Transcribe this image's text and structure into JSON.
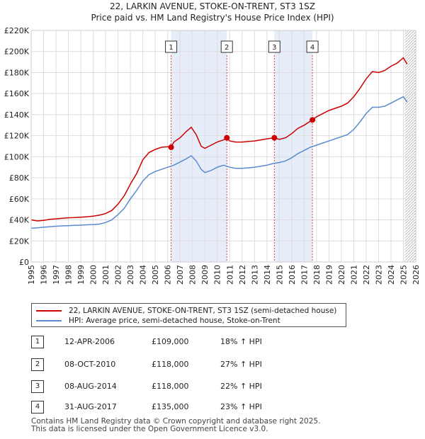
{
  "chart_data": {
    "type": "line",
    "title": "22, LARKIN AVENUE, STOKE-ON-TRENT, ST3 1SZ",
    "subtitle": "Price paid vs. HM Land Registry's House Price Index (HPI)",
    "xlabel": "",
    "ylabel": "",
    "xlim": [
      1995,
      2026
    ],
    "ylim": [
      0,
      220000
    ],
    "y_ticks": [
      0,
      20000,
      40000,
      60000,
      80000,
      100000,
      120000,
      140000,
      160000,
      180000,
      200000,
      220000
    ],
    "y_tick_labels": [
      "£0",
      "£20K",
      "£40K",
      "£60K",
      "£80K",
      "£100K",
      "£120K",
      "£140K",
      "£160K",
      "£180K",
      "£200K",
      "£220K"
    ],
    "x_ticks": [
      1995,
      1996,
      1997,
      1998,
      1999,
      2000,
      2001,
      2002,
      2003,
      2004,
      2005,
      2006,
      2007,
      2008,
      2009,
      2010,
      2011,
      2012,
      2013,
      2014,
      2015,
      2016,
      2017,
      2018,
      2019,
      2020,
      2021,
      2022,
      2023,
      2024,
      2025,
      2026
    ],
    "x_tick_labels": [
      "1995",
      "1996",
      "1997",
      "1998",
      "1999",
      "2000",
      "2001",
      "2002",
      "2003",
      "2004",
      "2005",
      "2006",
      "2007",
      "2008",
      "2009",
      "2010",
      "2011",
      "2012",
      "2013",
      "2014",
      "2015",
      "2016",
      "2017",
      "2018",
      "2019",
      "2020",
      "2021",
      "2022",
      "2023",
      "2024",
      "2025",
      "2026"
    ],
    "grid": true,
    "series": [
      {
        "name": "22, LARKIN AVENUE, STOKE-ON-TRENT, ST3 1SZ (semi-detached house)",
        "color": "#cc0000",
        "x": [
          1995.0,
          1995.5,
          1996.0,
          1996.5,
          1997.0,
          1997.5,
          1998.0,
          1998.5,
          1999.0,
          1999.5,
          2000.0,
          2000.5,
          2001.0,
          2001.5,
          2002.0,
          2002.5,
          2003.0,
          2003.5,
          2004.0,
          2004.5,
          2005.0,
          2005.5,
          2006.0,
          2006.28,
          2006.5,
          2007.0,
          2007.5,
          2007.9,
          2008.3,
          2008.7,
          2009.0,
          2009.5,
          2010.0,
          2010.5,
          2010.77,
          2011.0,
          2011.5,
          2012.0,
          2012.5,
          2013.0,
          2013.5,
          2014.0,
          2014.6,
          2015.0,
          2015.5,
          2016.0,
          2016.5,
          2017.0,
          2017.67,
          2018.0,
          2018.5,
          2019.0,
          2019.5,
          2020.0,
          2020.5,
          2021.0,
          2021.5,
          2022.0,
          2022.5,
          2023.0,
          2023.5,
          2024.0,
          2024.5,
          2025.0,
          2025.3
        ],
        "y": [
          40000,
          39000,
          39500,
          40500,
          41000,
          41500,
          42000,
          42200,
          42500,
          43000,
          43500,
          44500,
          46000,
          49000,
          55000,
          63000,
          74000,
          84000,
          97000,
          104000,
          107000,
          109000,
          109500,
          109000,
          114000,
          118000,
          124000,
          128000,
          121000,
          110000,
          108000,
          111000,
          114000,
          116000,
          118000,
          115000,
          114000,
          114000,
          114500,
          115000,
          116000,
          117000,
          118000,
          116500,
          118000,
          122000,
          127000,
          130000,
          135000,
          138000,
          141000,
          144000,
          146000,
          148000,
          151000,
          157000,
          165000,
          174000,
          181000,
          180000,
          182000,
          186000,
          189000,
          194000,
          188000
        ]
      },
      {
        "name": "HPI: Average price, semi-detached house, Stoke-on-Trent",
        "color": "#5b8bd0",
        "x": [
          1995.0,
          1995.5,
          1996.0,
          1996.5,
          1997.0,
          1997.5,
          1998.0,
          1998.5,
          1999.0,
          1999.5,
          2000.0,
          2000.5,
          2001.0,
          2001.5,
          2002.0,
          2002.5,
          2003.0,
          2003.5,
          2004.0,
          2004.5,
          2005.0,
          2005.5,
          2006.0,
          2006.5,
          2007.0,
          2007.5,
          2007.9,
          2008.3,
          2008.7,
          2009.0,
          2009.5,
          2010.0,
          2010.5,
          2011.0,
          2011.5,
          2012.0,
          2012.5,
          2013.0,
          2013.5,
          2014.0,
          2014.5,
          2015.0,
          2015.5,
          2016.0,
          2016.5,
          2017.0,
          2017.5,
          2018.0,
          2018.5,
          2019.0,
          2019.5,
          2020.0,
          2020.5,
          2021.0,
          2021.5,
          2022.0,
          2022.5,
          2023.0,
          2023.5,
          2024.0,
          2024.5,
          2025.0,
          2025.3
        ],
        "y": [
          32000,
          32500,
          33000,
          33500,
          34000,
          34300,
          34500,
          34800,
          35000,
          35300,
          35600,
          36000,
          37500,
          40000,
          45000,
          51000,
          60000,
          68000,
          77000,
          83000,
          86000,
          88000,
          90000,
          92000,
          95000,
          98000,
          101000,
          96000,
          88000,
          85000,
          87000,
          90000,
          92000,
          90000,
          89000,
          89000,
          89500,
          90000,
          91000,
          92000,
          93500,
          94500,
          96000,
          99000,
          103000,
          106000,
          109000,
          111000,
          113000,
          115000,
          117000,
          119000,
          121000,
          126000,
          133000,
          141000,
          147000,
          147000,
          148000,
          151000,
          154000,
          157000,
          152000
        ]
      }
    ],
    "sales": [
      {
        "label": "1",
        "x": 2006.28,
        "y": 109000
      },
      {
        "label": "2",
        "x": 2010.77,
        "y": 118000
      },
      {
        "label": "3",
        "x": 2014.6,
        "y": 118000
      },
      {
        "label": "4",
        "x": 2017.67,
        "y": 135000
      }
    ],
    "shaded_ranges": [
      [
        2006.28,
        2010.77
      ],
      [
        2014.6,
        2017.67
      ]
    ],
    "projection_start": 2025.1
  },
  "legend": {
    "property_label": "22, LARKIN AVENUE, STOKE-ON-TRENT, ST3 1SZ (semi-detached house)",
    "hpi_label": "HPI: Average price, semi-detached house, Stoke-on-Trent",
    "property_color": "#cc0000",
    "hpi_color": "#5b8bd0"
  },
  "transactions": [
    {
      "num": "1",
      "date": "12-APR-2006",
      "price": "£109,000",
      "hpi": "18% ↑ HPI"
    },
    {
      "num": "2",
      "date": "08-OCT-2010",
      "price": "£118,000",
      "hpi": "27% ↑ HPI"
    },
    {
      "num": "3",
      "date": "08-AUG-2014",
      "price": "£118,000",
      "hpi": "22% ↑ HPI"
    },
    {
      "num": "4",
      "date": "31-AUG-2017",
      "price": "£135,000",
      "hpi": "23% ↑ HPI"
    }
  ],
  "footer": {
    "line1": "Contains HM Land Registry data © Crown copyright and database right 2025.",
    "line2": "This data is licensed under the Open Government Licence v3.0."
  }
}
